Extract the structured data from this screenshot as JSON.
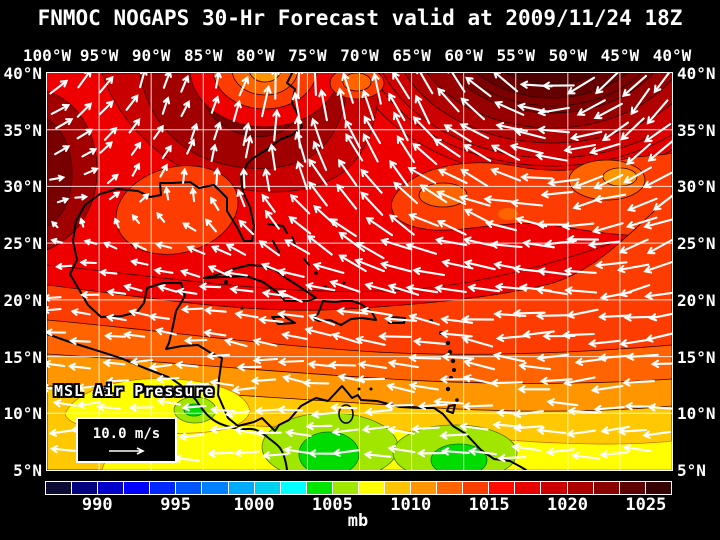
{
  "title": "FNMOC NOGAPS 30-Hr Forecast valid at 2009/11/24 18Z",
  "map": {
    "lon_labels": [
      "100°W",
      "95°W",
      "90°W",
      "85°W",
      "80°W",
      "75°W",
      "70°W",
      "65°W",
      "60°W",
      "55°W",
      "50°W",
      "45°W",
      "40°W"
    ],
    "lat_labels": [
      "40°N",
      "35°N",
      "30°N",
      "25°N",
      "20°N",
      "15°N",
      "10°N",
      "5°N"
    ],
    "overlay_label": "MSL Air Pressure",
    "wind_legend_speed": "10.0 m/s"
  },
  "colorbar": {
    "unit": "mb",
    "tick_labels": [
      "990",
      "995",
      "1000",
      "1005",
      "1010",
      "1015",
      "1020",
      "1025"
    ],
    "tick_segment_positions": [
      2,
      5,
      8,
      11,
      14,
      17,
      20,
      23
    ],
    "segment_count": 24,
    "segment_colors": [
      "#0a0a32",
      "#000080",
      "#0000c8",
      "#0000ff",
      "#0028ff",
      "#0055ff",
      "#0080ff",
      "#00aaff",
      "#00d0f0",
      "#00ffff",
      "#00e400",
      "#a0e800",
      "#ffff00",
      "#ffc400",
      "#ff9600",
      "#ff6400",
      "#fc3c00",
      "#ff0a00",
      "#e80000",
      "#cc0000",
      "#ac0000",
      "#8a0000",
      "#5e0000",
      "#360000"
    ]
  },
  "chart_data": {
    "type": "heatmap",
    "title": "FNMOC NOGAPS 30-Hr Forecast valid at 2009/11/24 18Z",
    "variable": "MSL Air Pressure",
    "unit": "mb",
    "forecast_hour": "30-Hr",
    "valid_time": "2009/11/24 18Z",
    "lon_ticks_deg_w": [
      100,
      95,
      90,
      85,
      80,
      75,
      70,
      65,
      60,
      55,
      50,
      45,
      40
    ],
    "lat_ticks_deg_n": [
      40,
      35,
      30,
      25,
      20,
      15,
      10,
      5
    ],
    "grid_interval_deg": 5,
    "colorbar_levels_mb": [
      990,
      995,
      1000,
      1005,
      1010,
      1015,
      1020,
      1025
    ],
    "wind_reference_m_s": 10.0,
    "legend_position": "bottom",
    "grid": true,
    "pressure_features": [
      {
        "feature": "strong high (dark maroon, ~1026+ mb)",
        "approx_location": "top-right, ~52W 42N, anticyclonic wind streamlines"
      },
      {
        "feature": "weak low (orange, ~1012 mb)",
        "approx_location": "top-left, ~95W 40N, cyclonic swirl"
      },
      {
        "feature": "dark red ridge ~1021 mb",
        "approx_location": "southeastern US and along 100W edge"
      },
      {
        "feature": "red belt ~1017-1019 mb",
        "approx_location": "Gulf of Mexico / Bahamas / 25-35N"
      },
      {
        "feature": "orange bands ~1012-1016 mb",
        "approx_location": "Caribbean 12-22N with easterly trade-wind arrows"
      },
      {
        "feature": "yellow-green lows ~1006-1009 mb",
        "approx_location": "Colombia/Panama ~75W 8N and Guyana ~60W 6N"
      }
    ]
  }
}
